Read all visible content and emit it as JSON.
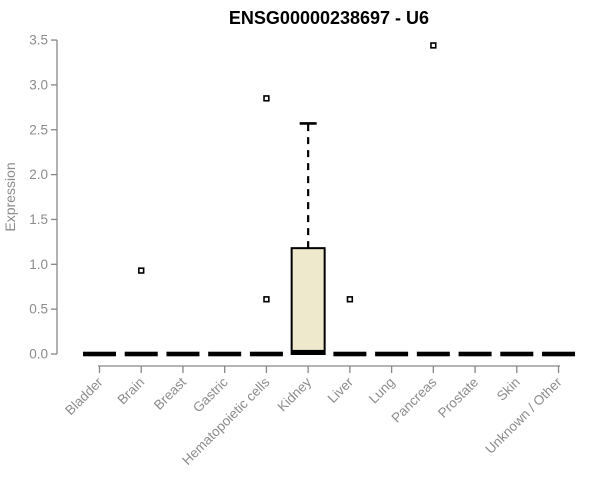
{
  "chart_data": {
    "type": "boxplot",
    "title": "ENSG00000238697 - U6",
    "ylabel": "Expression",
    "xlabel": "",
    "ylim": [
      0.0,
      3.5
    ],
    "yticks": [
      "0.0",
      "0.5",
      "1.0",
      "1.5",
      "2.0",
      "2.5",
      "3.0",
      "3.5"
    ],
    "grid": false,
    "legend": false,
    "categories": [
      "Bladder",
      "Brain",
      "Breast",
      "Gastric",
      "Hematopoietic cells",
      "Kidney",
      "Liver",
      "Lung",
      "Pancreas",
      "Prostate",
      "Skin",
      "Unknown / Other"
    ],
    "boxes": [
      {
        "category": "Bladder",
        "whisker_low": 0,
        "q1": 0,
        "median": 0,
        "q3": 0,
        "whisker_high": 0,
        "outliers": []
      },
      {
        "category": "Brain",
        "whisker_low": 0,
        "q1": 0,
        "median": 0,
        "q3": 0,
        "whisker_high": 0,
        "outliers": [
          0.93
        ]
      },
      {
        "category": "Breast",
        "whisker_low": 0,
        "q1": 0,
        "median": 0,
        "q3": 0,
        "whisker_high": 0,
        "outliers": []
      },
      {
        "category": "Gastric",
        "whisker_low": 0,
        "q1": 0,
        "median": 0,
        "q3": 0,
        "whisker_high": 0,
        "outliers": []
      },
      {
        "category": "Hematopoietic cells",
        "whisker_low": 0,
        "q1": 0,
        "median": 0,
        "q3": 0,
        "whisker_high": 0,
        "outliers": [
          2.85,
          0.61
        ]
      },
      {
        "category": "Kidney",
        "whisker_low": 0,
        "q1": 0,
        "median": 0.02,
        "q3": 1.18,
        "whisker_high": 2.57,
        "outliers": []
      },
      {
        "category": "Liver",
        "whisker_low": 0,
        "q1": 0,
        "median": 0,
        "q3": 0,
        "whisker_high": 0,
        "outliers": [
          0.61
        ]
      },
      {
        "category": "Lung",
        "whisker_low": 0,
        "q1": 0,
        "median": 0,
        "q3": 0,
        "whisker_high": 0,
        "outliers": []
      },
      {
        "category": "Pancreas",
        "whisker_low": 0,
        "q1": 0,
        "median": 0,
        "q3": 0,
        "whisker_high": 0,
        "outliers": [
          3.44
        ]
      },
      {
        "category": "Prostate",
        "whisker_low": 0,
        "q1": 0,
        "median": 0,
        "q3": 0,
        "whisker_high": 0,
        "outliers": []
      },
      {
        "category": "Skin",
        "whisker_low": 0,
        "q1": 0,
        "median": 0,
        "q3": 0,
        "whisker_high": 0,
        "outliers": []
      },
      {
        "category": "Unknown / Other",
        "whisker_low": 0,
        "q1": 0,
        "median": 0,
        "q3": 0,
        "whisker_high": 0,
        "outliers": []
      }
    ],
    "colors": {
      "box_fill": "#EEE8CD",
      "box_stroke": "#000000",
      "median": "#000000",
      "whisker": "#000000",
      "outlier_fill": "#FFFFFF",
      "outlier_stroke": "#000000",
      "axis": "#878787",
      "tick_label": "#8C8C8C",
      "title": "#000000",
      "background": "#FFFFFF"
    }
  }
}
